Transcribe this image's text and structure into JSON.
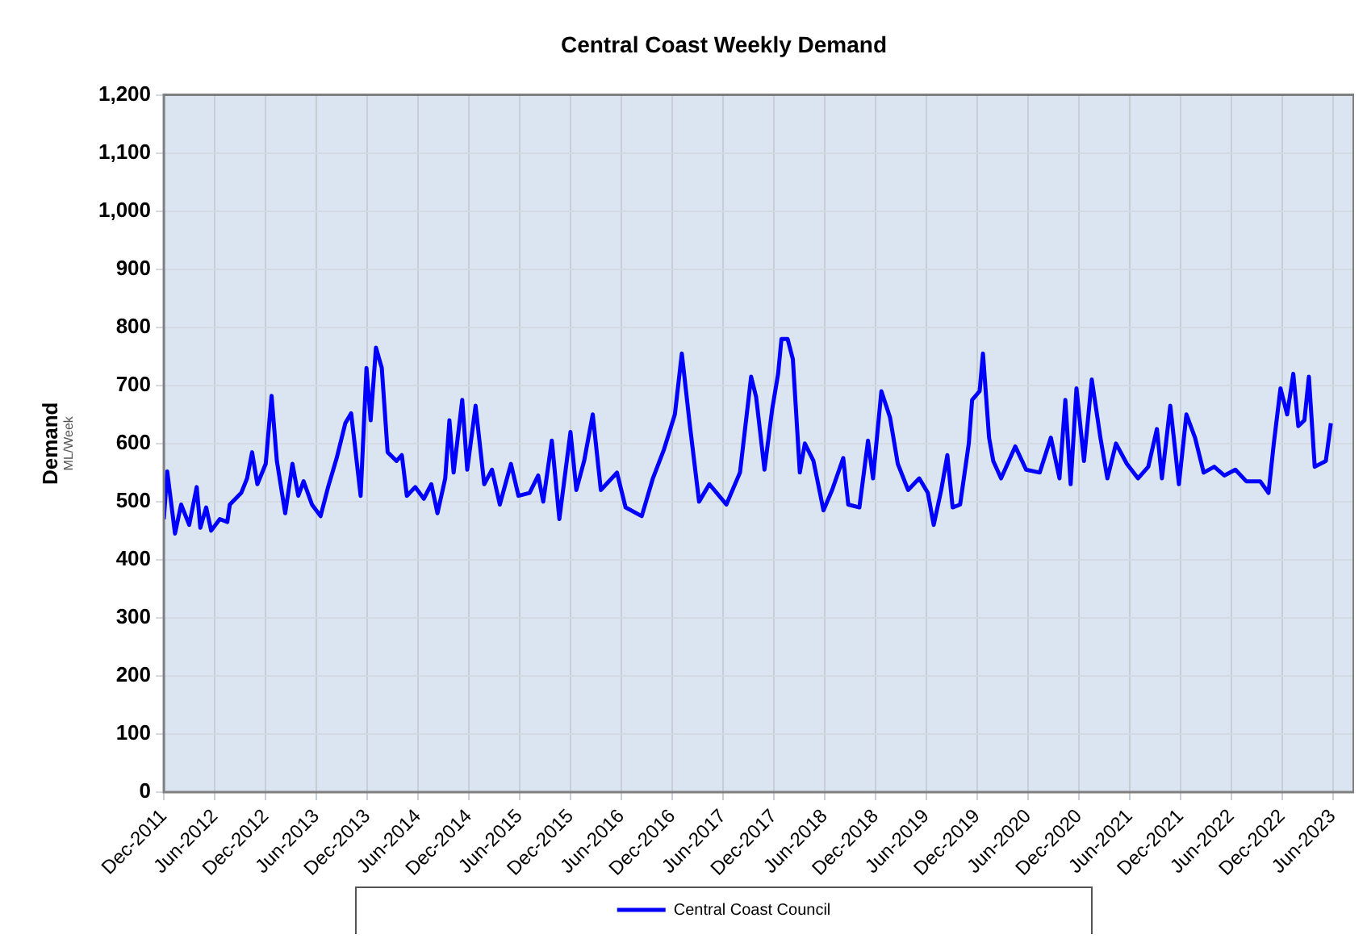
{
  "chart_data": {
    "type": "line",
    "title": "Central Coast Weekly Demand",
    "ylabel": "Demand ML/Week",
    "x": [
      "2011-12-01",
      "2011-12-13",
      "2012-01-10",
      "2012-02-01",
      "2012-03-01",
      "2012-03-28",
      "2012-04-10",
      "2012-05-01",
      "2012-05-19",
      "2012-06-19",
      "2012-07-16",
      "2012-07-25",
      "2012-09-04",
      "2012-09-25",
      "2012-10-13",
      "2012-11-01",
      "2012-12-01",
      "2012-12-22",
      "2013-01-10",
      "2013-02-09",
      "2013-03-07",
      "2013-03-28",
      "2013-04-16",
      "2013-05-16",
      "2013-06-16",
      "2013-07-13",
      "2013-08-13",
      "2013-09-13",
      "2013-10-04",
      "2013-11-07",
      "2013-11-28",
      "2013-12-13",
      "2014-01-01",
      "2014-01-22",
      "2014-02-12",
      "2014-03-16",
      "2014-04-04",
      "2014-04-22",
      "2014-05-22",
      "2014-06-22",
      "2014-07-19",
      "2014-08-10",
      "2014-09-07",
      "2014-09-22",
      "2014-10-07",
      "2014-11-07",
      "2014-11-25",
      "2014-12-25",
      "2015-01-25",
      "2015-02-22",
      "2015-03-22",
      "2015-05-01",
      "2015-05-28",
      "2015-07-07",
      "2015-08-07",
      "2015-08-25",
      "2015-09-25",
      "2015-10-22",
      "2015-12-01",
      "2015-12-22",
      "2016-01-19",
      "2016-02-19",
      "2016-03-19",
      "2016-05-16",
      "2016-06-16",
      "2016-08-13",
      "2016-09-22",
      "2016-11-01",
      "2016-12-10",
      "2017-01-04",
      "2017-02-01",
      "2017-03-07",
      "2017-04-13",
      "2017-06-13",
      "2017-08-01",
      "2017-09-10",
      "2017-09-28",
      "2017-10-28",
      "2017-11-25",
      "2017-12-16",
      "2017-12-28",
      "2018-01-19",
      "2018-02-07",
      "2018-03-04",
      "2018-03-22",
      "2018-04-22",
      "2018-05-28",
      "2018-06-28",
      "2018-08-07",
      "2018-08-25",
      "2018-10-04",
      "2018-11-04",
      "2018-11-22",
      "2018-12-22",
      "2019-01-22",
      "2019-02-19",
      "2019-03-28",
      "2019-05-07",
      "2019-06-07",
      "2019-06-28",
      "2019-07-25",
      "2019-08-16",
      "2019-09-04",
      "2019-10-01",
      "2019-11-01",
      "2019-11-13",
      "2019-12-10",
      "2019-12-22",
      "2020-01-13",
      "2020-01-28",
      "2020-02-25",
      "2020-04-16",
      "2020-05-25",
      "2020-07-13",
      "2020-08-22",
      "2020-09-22",
      "2020-10-13",
      "2020-11-01",
      "2020-11-22",
      "2020-12-19",
      "2021-01-16",
      "2021-02-16",
      "2021-03-13",
      "2021-04-13",
      "2021-05-22",
      "2021-07-01",
      "2021-08-07",
      "2021-09-07",
      "2021-09-25",
      "2021-10-25",
      "2021-11-25",
      "2021-12-22",
      "2022-01-22",
      "2022-02-22",
      "2022-04-01",
      "2022-05-07",
      "2022-06-16",
      "2022-07-25",
      "2022-09-13",
      "2022-10-13",
      "2022-11-01",
      "2022-11-25",
      "2022-12-19",
      "2023-01-10",
      "2023-01-28",
      "2023-02-19",
      "2023-03-07",
      "2023-03-28",
      "2023-05-07",
      "2023-05-25"
    ],
    "series": [
      {
        "name": "Central Coast Council",
        "color": "#0000ff",
        "values": [
          470,
          552,
          445,
          495,
          460,
          525,
          455,
          490,
          450,
          470,
          465,
          495,
          515,
          540,
          585,
          530,
          565,
          682,
          570,
          480,
          565,
          510,
          535,
          495,
          475,
          525,
          575,
          635,
          652,
          510,
          730,
          640,
          765,
          730,
          585,
          570,
          580,
          510,
          525,
          505,
          530,
          480,
          540,
          640,
          550,
          675,
          555,
          665,
          530,
          555,
          495,
          565,
          510,
          515,
          545,
          500,
          605,
          470,
          620,
          520,
          570,
          650,
          520,
          550,
          490,
          475,
          540,
          590,
          650,
          755,
          635,
          500,
          530,
          495,
          550,
          715,
          680,
          555,
          660,
          720,
          780,
          780,
          745,
          550,
          600,
          570,
          485,
          520,
          575,
          495,
          490,
          605,
          540,
          690,
          645,
          565,
          520,
          540,
          515,
          460,
          520,
          580,
          490,
          495,
          600,
          675,
          690,
          755,
          610,
          570,
          540,
          595,
          555,
          550,
          610,
          540,
          675,
          530,
          695,
          570,
          710,
          610,
          540,
          600,
          565,
          540,
          560,
          625,
          540,
          665,
          530,
          650,
          610,
          550,
          560,
          545,
          555,
          535,
          535,
          515,
          600,
          695,
          650,
          720,
          630,
          640,
          715,
          560,
          570,
          635
        ]
      }
    ],
    "xlim": [
      "2011-12-01",
      "2023-08-15"
    ],
    "xticks": [
      {
        "value": "2011-12",
        "label": "Dec-2011"
      },
      {
        "value": "2012-06",
        "label": "Jun-2012"
      },
      {
        "value": "2012-12",
        "label": "Dec-2012"
      },
      {
        "value": "2013-06",
        "label": "Jun-2013"
      },
      {
        "value": "2013-12",
        "label": "Dec-2013"
      },
      {
        "value": "2014-06",
        "label": "Jun-2014"
      },
      {
        "value": "2014-12",
        "label": "Dec-2014"
      },
      {
        "value": "2015-06",
        "label": "Jun-2015"
      },
      {
        "value": "2015-12",
        "label": "Dec-2015"
      },
      {
        "value": "2016-06",
        "label": "Jun-2016"
      },
      {
        "value": "2016-12",
        "label": "Dec-2016"
      },
      {
        "value": "2017-06",
        "label": "Jun-2017"
      },
      {
        "value": "2017-12",
        "label": "Dec-2017"
      },
      {
        "value": "2018-06",
        "label": "Jun-2018"
      },
      {
        "value": "2018-12",
        "label": "Dec-2018"
      },
      {
        "value": "2019-06",
        "label": "Jun-2019"
      },
      {
        "value": "2019-12",
        "label": "Dec-2019"
      },
      {
        "value": "2020-06",
        "label": "Jun-2020"
      },
      {
        "value": "2020-12",
        "label": "Dec-2020"
      },
      {
        "value": "2021-06",
        "label": "Jun-2021"
      },
      {
        "value": "2021-12",
        "label": "Dec-2021"
      },
      {
        "value": "2022-06",
        "label": "Jun-2022"
      },
      {
        "value": "2022-12",
        "label": "Dec-2022"
      },
      {
        "value": "2023-06",
        "label": "Jun-2023"
      }
    ],
    "ylim": [
      0,
      1200
    ],
    "yticks": [
      0,
      100,
      200,
      300,
      400,
      500,
      600,
      700,
      800,
      900,
      {
        "value": 1000,
        "label": "1,000"
      },
      {
        "value": 1100,
        "label": "1,100"
      },
      {
        "value": 1200,
        "label": "1,200"
      }
    ],
    "grid": true,
    "legend": "bottom",
    "marker": "none",
    "line_style": "solid"
  }
}
